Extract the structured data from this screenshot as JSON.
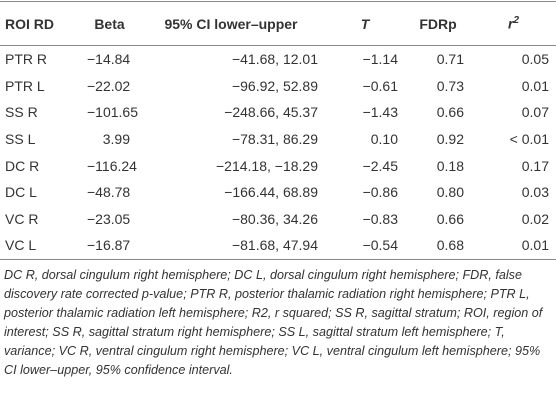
{
  "table": {
    "headers": [
      "ROI RD",
      "Beta",
      "95% CI lower–upper",
      "T",
      "FDRp",
      {
        "text": "r",
        "sup": "2"
      }
    ],
    "rows": [
      [
        "PTR R",
        "−14.84",
        "−41.68, 12.01",
        "−1.14",
        "0.71",
        "0.05"
      ],
      [
        "PTR L",
        "−22.02",
        "−96.92, 52.89",
        "−0.61",
        "0.73",
        "0.01"
      ],
      [
        "SS R",
        "−101.65",
        "−248.66, 45.37",
        "−1.43",
        "0.66",
        "0.07"
      ],
      [
        "SS L",
        "3.99",
        "−78.31, 86.29",
        "0.10",
        "0.92",
        "< 0.01"
      ],
      [
        "DC R",
        "−116.24",
        "−214.18, −18.29",
        "−2.45",
        "0.18",
        "0.17"
      ],
      [
        "DC L",
        "−48.78",
        "−166.44, 68.89",
        "−0.86",
        "0.80",
        "0.03"
      ],
      [
        "VC R",
        "−23.05",
        "−80.36, 34.26",
        "−0.83",
        "0.66",
        "0.02"
      ],
      [
        "VC L",
        "−16.87",
        "−81.68, 47.94",
        "−0.54",
        "0.68",
        "0.01"
      ]
    ]
  },
  "footnote": "DC R, dorsal cingulum right hemisphere; DC L, dorsal cingulum right hemisphere; FDR, false discovery rate corrected p-value; PTR R, posterior thalamic radiation right hemisphere; PTR L, posterior thalamic radiation left hemisphere; R2, r squared; SS R, sagittal stratum; ROI, region of interest; SS R, sagittal stratum right hemisphere; SS L, sagittal stratum left hemisphere; T, variance; VC R, ventral cingulum right hemisphere; VC L, ventral cingulum left hemisphere; 95% CI lower–upper, 95% confidence interval."
}
